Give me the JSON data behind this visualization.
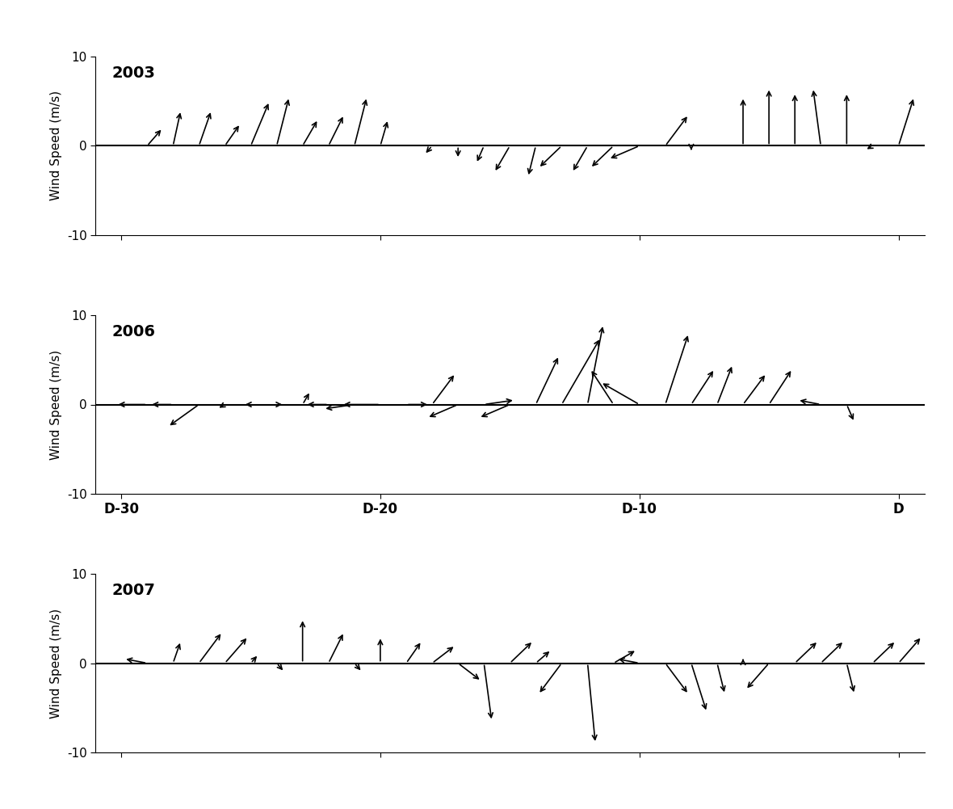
{
  "years": [
    "2003",
    "2006",
    "2007"
  ],
  "xlim": [
    -1,
    31
  ],
  "ylim": [
    -10,
    10
  ],
  "yticks": [
    -10,
    0,
    10
  ],
  "ylabel": "Wind Speed (m/s)",
  "xtick_positions": [
    0,
    10,
    20,
    30
  ],
  "xtick_labels": [
    "D-30",
    "D-20",
    "D-10",
    "D"
  ],
  "background_color": "#ffffff",
  "year_fontsize": 14,
  "label_fontsize": 11,
  "tick_label_fontsize": 12,
  "wind_2003": {
    "days": [
      1,
      2,
      3,
      4,
      5,
      6,
      7,
      8,
      9,
      10,
      11,
      12,
      13,
      14,
      15,
      16,
      17,
      18,
      19,
      20,
      21,
      22,
      23,
      24,
      25,
      26,
      27,
      28,
      29,
      30
    ],
    "u": [
      1.0,
      0.5,
      0.8,
      1.0,
      1.2,
      0.8,
      1.0,
      1.0,
      0.8,
      0.5,
      0.0,
      -0.5,
      0.0,
      -0.5,
      -1.0,
      -0.5,
      -1.5,
      -1.0,
      -1.5,
      -2.0,
      1.5,
      0.0,
      0.0,
      0.0,
      0.0,
      0.0,
      -0.5,
      0.0,
      -0.5,
      1.0
    ],
    "v": [
      2.0,
      4.0,
      4.0,
      2.5,
      5.0,
      5.5,
      3.0,
      3.5,
      5.5,
      3.0,
      0.0,
      -1.0,
      -1.5,
      -2.0,
      -3.0,
      -3.5,
      -2.5,
      -3.0,
      -2.5,
      -1.5,
      3.5,
      -0.5,
      0.0,
      5.5,
      6.5,
      6.0,
      6.5,
      6.0,
      -0.5,
      5.5
    ]
  },
  "wind_2006": {
    "days": [
      1,
      2,
      3,
      4,
      5,
      6,
      7,
      8,
      9,
      10,
      11,
      12,
      13,
      14,
      15,
      16,
      17,
      18,
      19,
      20,
      21,
      22,
      23,
      24,
      25,
      26,
      27,
      28,
      29,
      30
    ],
    "u": [
      -2.0,
      -1.5,
      -2.0,
      -0.5,
      -0.5,
      0.5,
      0.5,
      -1.5,
      -2.0,
      -2.5,
      1.5,
      1.5,
      -2.0,
      2.0,
      -2.0,
      1.5,
      2.5,
      1.0,
      -1.5,
      -2.5,
      1.5,
      1.5,
      1.0,
      1.5,
      1.5,
      0.0,
      -1.5,
      0.5,
      0.0,
      2.0
    ],
    "v": [
      0.0,
      0.0,
      -2.5,
      -0.5,
      0.0,
      0.0,
      1.5,
      0.0,
      -0.5,
      0.0,
      0.0,
      3.5,
      -1.5,
      0.5,
      -1.5,
      5.5,
      7.5,
      9.0,
      4.0,
      2.5,
      8.0,
      4.0,
      4.5,
      3.5,
      4.0,
      0.0,
      0.5,
      -2.0,
      0.0,
      2.0
    ]
  },
  "wind_2007": {
    "days": [
      1,
      2,
      3,
      4,
      5,
      6,
      7,
      8,
      9,
      10,
      11,
      12,
      13,
      14,
      15,
      16,
      17,
      18,
      19,
      20,
      21,
      22,
      23,
      24,
      25,
      26,
      27,
      28,
      29,
      30
    ],
    "u": [
      -1.5,
      0.5,
      1.5,
      1.5,
      0.5,
      0.5,
      0.0,
      1.0,
      0.5,
      0.0,
      1.0,
      1.5,
      1.5,
      0.5,
      1.5,
      1.0,
      -1.5,
      0.5,
      1.5,
      -1.5,
      1.5,
      1.0,
      0.5,
      0.0,
      -1.5,
      1.5,
      1.5,
      0.5,
      1.5,
      1.5
    ],
    "v": [
      0.5,
      2.5,
      3.5,
      3.0,
      1.0,
      -1.0,
      5.0,
      3.5,
      -1.0,
      3.0,
      2.5,
      2.0,
      -2.0,
      -6.5,
      2.5,
      1.5,
      -3.5,
      -9.0,
      1.5,
      0.5,
      -3.5,
      -5.5,
      -3.5,
      0.5,
      -3.0,
      2.5,
      2.5,
      -3.5,
      2.5,
      3.0
    ]
  }
}
